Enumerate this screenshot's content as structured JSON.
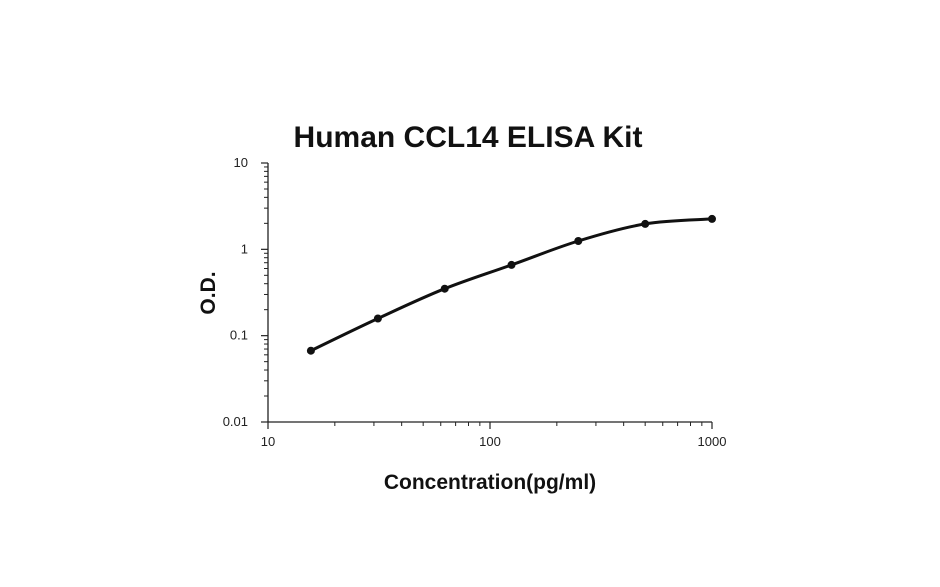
{
  "chart_data": {
    "type": "line",
    "title": "Human CCL14 ELISA Kit",
    "xlabel": "Concentration(pg/ml)",
    "ylabel": "O.D.",
    "x_scale": "log",
    "y_scale": "log",
    "xlim": [
      10,
      1000
    ],
    "ylim": [
      0.01,
      10
    ],
    "x_ticks": [
      "10",
      "100",
      "1000"
    ],
    "y_ticks": [
      "0.01",
      "0.1",
      "1",
      "10"
    ],
    "grid": false,
    "legend": "none",
    "series": [
      {
        "x": [
          15.6,
          31.25,
          62.5,
          125,
          250,
          500,
          1000
        ],
        "y": [
          0.067,
          0.158,
          0.35,
          0.66,
          1.25,
          1.97,
          2.25
        ]
      }
    ],
    "colors": {
      "line": "#111111",
      "marker": "#111111",
      "axis": "#222222"
    }
  }
}
